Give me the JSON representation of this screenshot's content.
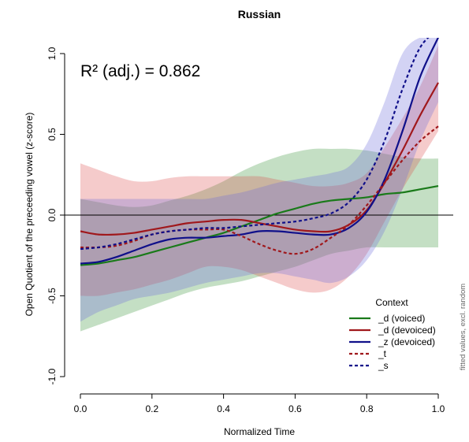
{
  "chart_data": {
    "type": "line",
    "title": "Russian",
    "xlabel": "Normalized Time",
    "ylabel": "Open Quotient of the preceeding vowel (z-score)",
    "xlim": [
      0.0,
      1.0
    ],
    "ylim": [
      -1.0,
      1.0
    ],
    "xticks": [
      "0.0",
      "0.2",
      "0.4",
      "0.6",
      "0.8",
      "1.0"
    ],
    "yticks": [
      "-1.0",
      "-0.5",
      "0.0",
      "0.5",
      "1.0"
    ],
    "reference_line_y": 0,
    "grid": false,
    "annotation": "R² (adj.) = 0.862",
    "side_note": "fitted values, excl. random",
    "legend": {
      "title": "Context",
      "placement": "bottom-right"
    },
    "x": [
      0.0,
      0.05,
      0.1,
      0.15,
      0.2,
      0.25,
      0.3,
      0.35,
      0.4,
      0.45,
      0.5,
      0.55,
      0.6,
      0.65,
      0.7,
      0.75,
      0.8,
      0.85,
      0.9,
      0.95,
      1.0
    ],
    "series": [
      {
        "name": "_d (voiced)",
        "color": "#1a7a1a",
        "fill": "rgba(60,150,60,0.30)",
        "dash": "solid",
        "values": [
          -0.31,
          -0.3,
          -0.28,
          -0.26,
          -0.23,
          -0.2,
          -0.17,
          -0.14,
          -0.11,
          -0.07,
          -0.03,
          0.01,
          0.04,
          0.07,
          0.09,
          0.1,
          0.11,
          0.13,
          0.14,
          0.16,
          0.18
        ],
        "upper": [
          0.1,
          0.08,
          0.06,
          0.05,
          0.06,
          0.09,
          0.12,
          0.16,
          0.21,
          0.27,
          0.32,
          0.36,
          0.39,
          0.41,
          0.41,
          0.41,
          0.4,
          0.38,
          0.36,
          0.35,
          0.35
        ],
        "lower": [
          -0.72,
          -0.68,
          -0.64,
          -0.6,
          -0.56,
          -0.52,
          -0.48,
          -0.45,
          -0.43,
          -0.41,
          -0.38,
          -0.35,
          -0.32,
          -0.28,
          -0.24,
          -0.22,
          -0.2,
          -0.2,
          -0.2,
          -0.2,
          -0.2
        ]
      },
      {
        "name": "_d (devoiced)",
        "color": "#a0181c",
        "fill": "rgba(220,70,70,0.28)",
        "dash": "solid",
        "values": [
          -0.1,
          -0.12,
          -0.12,
          -0.11,
          -0.09,
          -0.07,
          -0.05,
          -0.04,
          -0.03,
          -0.03,
          -0.05,
          -0.07,
          -0.09,
          -0.1,
          -0.1,
          -0.06,
          0.03,
          0.2,
          0.4,
          0.62,
          0.82
        ],
        "upper": [
          0.32,
          0.28,
          0.24,
          0.21,
          0.21,
          0.23,
          0.24,
          0.24,
          0.24,
          0.24,
          0.24,
          0.22,
          0.2,
          0.18,
          0.18,
          0.2,
          0.26,
          0.42,
          0.6,
          0.8,
          1.05
        ],
        "lower": [
          -0.5,
          -0.5,
          -0.48,
          -0.46,
          -0.43,
          -0.4,
          -0.36,
          -0.32,
          -0.32,
          -0.34,
          -0.38,
          -0.42,
          -0.46,
          -0.48,
          -0.46,
          -0.38,
          -0.24,
          -0.04,
          0.16,
          0.34,
          0.52
        ]
      },
      {
        "name": "_z (devoiced)",
        "color": "#10108a",
        "fill": "rgba(110,110,220,0.30)",
        "dash": "solid",
        "values": [
          -0.3,
          -0.29,
          -0.26,
          -0.22,
          -0.18,
          -0.15,
          -0.14,
          -0.14,
          -0.13,
          -0.12,
          -0.1,
          -0.1,
          -0.11,
          -0.12,
          -0.12,
          -0.08,
          0.02,
          0.22,
          0.52,
          0.86,
          1.1
        ],
        "upper": [
          0.1,
          0.1,
          0.1,
          0.1,
          0.1,
          0.1,
          0.1,
          0.1,
          0.12,
          0.14,
          0.17,
          0.2,
          0.22,
          0.24,
          0.26,
          0.3,
          0.44,
          0.7,
          1.0,
          1.1,
          1.1
        ],
        "lower": [
          -0.66,
          -0.6,
          -0.56,
          -0.52,
          -0.5,
          -0.48,
          -0.45,
          -0.42,
          -0.4,
          -0.38,
          -0.36,
          -0.36,
          -0.38,
          -0.4,
          -0.42,
          -0.38,
          -0.28,
          -0.1,
          0.16,
          0.46,
          0.7
        ]
      },
      {
        "name": "_t",
        "color": "#a0181c",
        "dash": "dashed",
        "values": [
          -0.2,
          -0.2,
          -0.19,
          -0.16,
          -0.12,
          -0.1,
          -0.09,
          -0.09,
          -0.09,
          -0.13,
          -0.18,
          -0.22,
          -0.24,
          -0.21,
          -0.14,
          -0.06,
          0.06,
          0.2,
          0.34,
          0.46,
          0.55
        ]
      },
      {
        "name": "_s",
        "color": "#10108a",
        "dash": "dashed",
        "values": [
          -0.21,
          -0.2,
          -0.18,
          -0.15,
          -0.12,
          -0.1,
          -0.09,
          -0.08,
          -0.08,
          -0.07,
          -0.06,
          -0.05,
          -0.04,
          -0.02,
          0.01,
          0.08,
          0.22,
          0.46,
          0.78,
          1.04,
          1.15
        ]
      }
    ]
  }
}
